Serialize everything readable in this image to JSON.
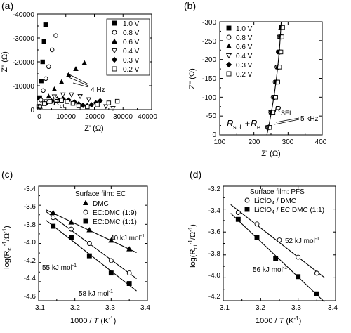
{
  "chart_data": [
    {
      "panel_label": "(a)",
      "type": "scatter",
      "xlabel": "Z' (Ω)",
      "ylabel": "Z'' (Ω)",
      "xlim": [
        0,
        40000
      ],
      "ylim": [
        0,
        -40000
      ],
      "x_ticks": [
        "0",
        "10000",
        "20000",
        "30000",
        "40000"
      ],
      "y_ticks": [
        "0",
        "-10000",
        "-20000",
        "-30000",
        "-40000"
      ],
      "legend_position": "top-right",
      "series": [
        {
          "name": "1.0 V",
          "marker": "square-filled",
          "points": [
            [
              500,
              -1300
            ],
            [
              900,
              -5000
            ],
            [
              1400,
              -12000
            ],
            [
              1900,
              -20000
            ],
            [
              2400,
              -28500
            ],
            [
              2900,
              -35500
            ]
          ]
        },
        {
          "name": "0.8 V",
          "marker": "circle-open",
          "points": [
            [
              700,
              -1500
            ],
            [
              1300,
              -4000
            ],
            [
              2100,
              -8000
            ],
            [
              3000,
              -13000
            ],
            [
              4000,
              -18000
            ],
            [
              5200,
              -25000
            ],
            [
              6500,
              -31000
            ]
          ]
        },
        {
          "name": "0.6 V",
          "marker": "triangle-filled",
          "points": [
            [
              1000,
              -1200
            ],
            [
              2500,
              -3000
            ],
            [
              4000,
              -5500
            ],
            [
              6000,
              -8500
            ],
            [
              8500,
              -11500
            ],
            [
              11000,
              -14500
            ],
            [
              13500,
              -17000
            ],
            [
              16500,
              -19500
            ]
          ]
        },
        {
          "name": "0.4 V",
          "marker": "triangle-open",
          "points": [
            [
              1000,
              -1100
            ],
            [
              3000,
              -3500
            ],
            [
              6000,
              -5500
            ],
            [
              9000,
              -6300
            ],
            [
              12000,
              -6300
            ],
            [
              15000,
              -5600
            ],
            [
              18000,
              -4300
            ],
            [
              21000,
              -2800
            ],
            [
              24000,
              -1400
            ],
            [
              26500,
              -600
            ]
          ]
        },
        {
          "name": "0.3 V",
          "marker": "diamond-filled",
          "points": [
            [
              3000,
              -2500
            ],
            [
              5000,
              -3600
            ],
            [
              7000,
              -4400
            ],
            [
              9000,
              -4500
            ],
            [
              11000,
              -4000
            ],
            [
              13000,
              -3200
            ],
            [
              14500,
              -2400
            ],
            [
              16000,
              -1800
            ],
            [
              17500,
              -1600
            ],
            [
              19000,
              -2000
            ],
            [
              20500,
              -2800
            ],
            [
              22000,
              -3700
            ]
          ]
        },
        {
          "name": "0.2 V",
          "marker": "square-open",
          "points": [
            [
              2500,
              -2500
            ],
            [
              4500,
              -3400
            ],
            [
              6500,
              -4000
            ],
            [
              8500,
              -3900
            ],
            [
              10500,
              -3400
            ],
            [
              12500,
              -2600
            ],
            [
              14500,
              -1600
            ],
            [
              17500,
              -1200
            ],
            [
              21000,
              -2000
            ],
            [
              25000,
              -2800
            ],
            [
              28000,
              -3500
            ]
          ]
        }
      ],
      "annotations": [
        "4 Hz",
        "R_ct"
      ]
    },
    {
      "panel_label": "(b)",
      "type": "scatter",
      "xlabel": "Z' (Ω)",
      "ylabel": "Z'' (Ω)",
      "xlim": [
        100,
        400
      ],
      "ylim": [
        0,
        -300
      ],
      "x_ticks": [
        "100",
        "200",
        "300",
        "400"
      ],
      "y_ticks": [
        "0",
        "-50",
        "-100",
        "-150",
        "-200",
        "-250",
        "-300"
      ],
      "legend_position": "top-left",
      "series": [
        {
          "name": "1.0 V",
          "marker": "square-filled",
          "points": [
            [
              243,
              -20
            ],
            [
              252,
              -60
            ],
            [
              260,
              -100
            ],
            [
              266,
              -140
            ],
            [
              271,
              -180
            ],
            [
              275,
              -220
            ],
            [
              278,
              -260
            ],
            [
              280,
              -285
            ]
          ]
        },
        {
          "name": "0.8 V",
          "marker": "circle-open",
          "points": [
            [
              240,
              -20
            ],
            [
              249,
              -60
            ],
            [
              256,
              -100
            ],
            [
              262,
              -140
            ],
            [
              267,
              -180
            ],
            [
              271,
              -220
            ],
            [
              274,
              -260
            ]
          ]
        },
        {
          "name": "0.6 V",
          "marker": "triangle-filled",
          "points": [
            [
              242,
              -20
            ],
            [
              251,
              -60
            ],
            [
              259,
              -100
            ],
            [
              265,
              -140
            ],
            [
              270,
              -180
            ],
            [
              274,
              -220
            ],
            [
              277,
              -260
            ],
            [
              279,
              -285
            ]
          ]
        },
        {
          "name": "0.4 V",
          "marker": "triangle-open",
          "points": [
            [
              241,
              -20
            ],
            [
              250,
              -60
            ],
            [
              258,
              -100
            ],
            [
              264,
              -140
            ],
            [
              269,
              -180
            ],
            [
              273,
              -220
            ],
            [
              276,
              -260
            ]
          ]
        },
        {
          "name": "0.3 V",
          "marker": "diamond-filled",
          "points": [
            [
              244,
              -20
            ],
            [
              253,
              -60
            ],
            [
              261,
              -100
            ],
            [
              267,
              -140
            ],
            [
              272,
              -180
            ],
            [
              276,
              -220
            ],
            [
              279,
              -260
            ],
            [
              281,
              -285
            ]
          ]
        },
        {
          "name": "0.2 V",
          "marker": "square-open",
          "points": [
            [
              246,
              -20
            ],
            [
              256,
              -60
            ],
            [
              264,
              -100
            ],
            [
              270,
              -140
            ],
            [
              275,
              -180
            ],
            [
              279,
              -220
            ],
            [
              282,
              -260
            ],
            [
              284,
              -285
            ]
          ]
        }
      ],
      "annotations": [
        "R_SEI",
        "5 kHz",
        "R_sol + R_e"
      ]
    },
    {
      "panel_label": "(c)",
      "type": "scatter",
      "xlabel": "1000 / T (K⁻¹)",
      "ylabel": "log(R_ct⁻¹/Ω⁻¹)",
      "xlim": [
        3.1,
        3.4
      ],
      "ylim": [
        -4.6,
        -3.4
      ],
      "x_ticks": [
        "3.1",
        "3.2",
        "3.3",
        "3.4"
      ],
      "y_ticks": [
        "-3.4",
        "-3.6",
        "-3.8",
        "-4.0",
        "-4.2",
        "-4.4",
        "-4.6"
      ],
      "legend_title": "Surface film: EC",
      "legend_position": "top-right",
      "series": [
        {
          "name": "DMC",
          "marker": "triangle-filled",
          "x": [
            3.14,
            3.19,
            3.24,
            3.3,
            3.35
          ],
          "y": [
            -3.68,
            -3.78,
            -3.86,
            -3.97,
            -4.06
          ]
        },
        {
          "name": "EC:DMC (1:9)",
          "marker": "circle-open",
          "x": [
            3.14,
            3.19,
            3.24,
            3.3,
            3.35
          ],
          "y": [
            -3.73,
            -3.85,
            -4.0,
            -4.18,
            -4.31
          ]
        },
        {
          "name": "EC:DMC (1:1)",
          "marker": "square-filled",
          "x": [
            3.14,
            3.19,
            3.24,
            3.3,
            3.35
          ],
          "y": [
            -3.82,
            -3.94,
            -4.13,
            -4.31,
            -4.42
          ]
        }
      ],
      "annotations": [
        "40 kJ mol⁻¹",
        "55 kJ mol⁻¹",
        "58 kJ mol⁻¹"
      ]
    },
    {
      "panel_label": "(d)",
      "type": "scatter",
      "xlabel": "1000 / T (K⁻¹)",
      "ylabel": "log(R_ct⁻¹/Ω⁻¹)",
      "xlim": [
        3.1,
        3.4
      ],
      "ylim": [
        -4.2,
        -3.2
      ],
      "x_ticks": [
        "3.1",
        "3.2",
        "3.3",
        "3.4"
      ],
      "y_ticks": [
        "-3.2",
        "-3.4",
        "-3.6",
        "-3.8",
        "-4.0",
        "-4.2"
      ],
      "legend_title": "Surface film: PFS",
      "legend_position": "top-right",
      "series": [
        {
          "name": "LiClO₄ / DMC",
          "marker": "circle-open",
          "x": [
            3.14,
            3.19,
            3.25,
            3.3,
            3.35
          ],
          "y": [
            -3.43,
            -3.53,
            -3.67,
            -3.82,
            -3.96
          ]
        },
        {
          "name": "LiClO₄ / EC:DMC (1:1)",
          "marker": "square-filled",
          "x": [
            3.14,
            3.19,
            3.24,
            3.3,
            3.35
          ],
          "y": [
            -3.49,
            -3.65,
            -3.83,
            -3.99,
            -4.14
          ]
        }
      ],
      "annotations": [
        "52 kJ mol⁻¹",
        "56 kJ mol⁻¹"
      ]
    }
  ],
  "text": {
    "a": {
      "label": "(a)",
      "ylabel": "Z'' (Ω)",
      "xlabel": "Z' (Ω)",
      "yticks": [
        "-40000",
        "-30000",
        "-20000",
        "-10000",
        "0"
      ],
      "xticks": [
        "0",
        "10000",
        "20000",
        "30000",
        "40000"
      ],
      "legend": [
        "1.0 V",
        "0.8 V",
        "0.6 V",
        "0.4 V",
        "0.3 V",
        "0.2 V"
      ],
      "ann_freq": "4 Hz",
      "ann_r": "R",
      "ann_r_sub": "ct"
    },
    "b": {
      "label": "(b)",
      "ylabel": "Z'' (Ω)",
      "xlabel": "Z' (Ω)",
      "yticks": [
        "-300",
        "-250",
        "-200",
        "-150",
        "-100",
        "-50",
        "0"
      ],
      "xticks": [
        "100",
        "200",
        "300",
        "400"
      ],
      "legend": [
        "1.0 V",
        "0.8 V",
        "0.6 V",
        "0.4 V",
        "0.3 V",
        "0.2 V"
      ],
      "ann_r": "R",
      "ann_r_sub": "SEI",
      "ann_freq": "5 kHz",
      "ann_sol_r": "R",
      "ann_sol_sub": "sol",
      "ann_plus": " + ",
      "ann_e_r": "R",
      "ann_e_sub": "e"
    },
    "c": {
      "label": "(c)",
      "ylabel": "log(R",
      "ylabel_sub": "ct",
      "ylabel_sup": "-1",
      "ylabel_tail": "/Ω",
      "ylabel_tail_sup": "-1",
      "ylabel_end": ")",
      "xlabel": "1000 / ",
      "xlabel_t": "T",
      "xlabel_tail": " (K",
      "xlabel_sup": "-1",
      "xlabel_end": ")",
      "yticks": [
        "-3.4",
        "-3.6",
        "-3.8",
        "-4.0",
        "-4.2",
        "-4.4",
        "-4.6"
      ],
      "xticks": [
        "3.1",
        "3.2",
        "3.3",
        "3.4"
      ],
      "legend_title": "Surface film: EC",
      "legend": [
        "DMC",
        "EC:DMC (1:9)",
        "EC:DMC (1:1)"
      ],
      "ann_40": "40 kJ mol",
      "ann_55": "55 kJ mol",
      "ann_58": "58 kJ mol",
      "ann_sup": "-1"
    },
    "d": {
      "label": "(d)",
      "ylabel": "log(R",
      "ylabel_sub": "ct",
      "ylabel_sup": "-1",
      "ylabel_tail": "/Ω",
      "ylabel_tail_sup": "-1",
      "ylabel_end": ")",
      "xlabel": "1000 / ",
      "xlabel_t": "T",
      "xlabel_tail": " (K",
      "xlabel_sup": "-1",
      "xlabel_end": ")",
      "yticks": [
        "-3.2",
        "-3.4",
        "-3.6",
        "-3.8",
        "-4.0",
        "-4.2"
      ],
      "xticks": [
        "3.1",
        "3.2",
        "3.3",
        "3.4"
      ],
      "legend_title": "Surface film: PFS",
      "legend_1_a": "LiClO",
      "legend_1_sub": "4",
      "legend_1_b": " / DMC",
      "legend_2_a": "LiClO",
      "legend_2_sub": "4",
      "legend_2_b": " / EC:DMC (1:1)",
      "ann_52": "52 kJ mol",
      "ann_56": "56 kJ mol",
      "ann_sup": "-1"
    }
  }
}
